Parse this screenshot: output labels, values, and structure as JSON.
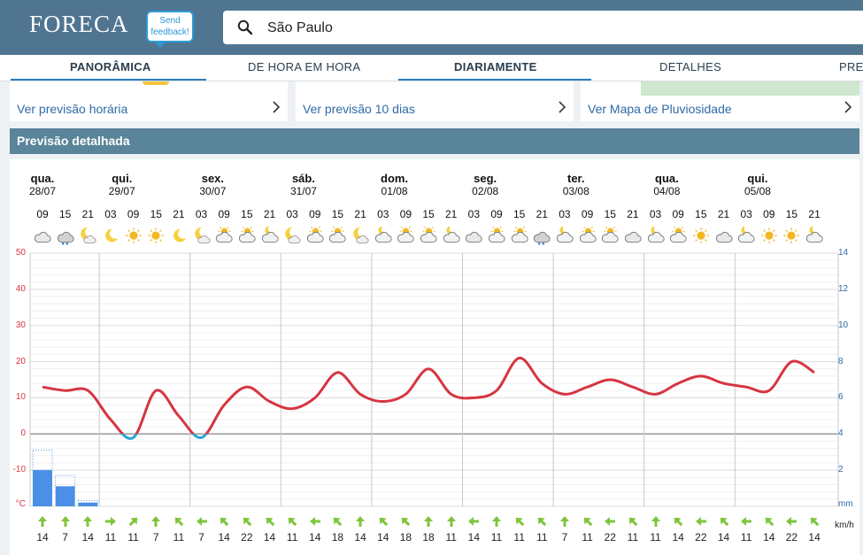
{
  "header": {
    "logo": "FORECA",
    "feedback_line1": "Send",
    "feedback_line2": "feedback!",
    "search_value": "São Paulo"
  },
  "tabs": [
    {
      "label": "PANORÂMICA",
      "active": true
    },
    {
      "label": "DE HORA EM HORA",
      "active": false
    },
    {
      "label": "DIARIAMENTE",
      "active": true
    },
    {
      "label": "DETALHES",
      "active": false
    },
    {
      "label": "PREC",
      "active": false
    }
  ],
  "cards": [
    {
      "link": "Ver previsão horária"
    },
    {
      "link": "Ver previsão 10 dias"
    },
    {
      "link": "Ver Mapa de Pluviosidade"
    }
  ],
  "section_title": "Previsão detalhada",
  "days": [
    {
      "name": "qua.",
      "date": "28/07"
    },
    {
      "name": "qui.",
      "date": "29/07"
    },
    {
      "name": "sex.",
      "date": "30/07"
    },
    {
      "name": "sáb.",
      "date": "31/07"
    },
    {
      "name": "dom.",
      "date": "01/08"
    },
    {
      "name": "seg.",
      "date": "02/08"
    },
    {
      "name": "ter.",
      "date": "03/08"
    },
    {
      "name": "qua.",
      "date": "04/08"
    },
    {
      "name": "qui.",
      "date": "05/08"
    }
  ],
  "hours": [
    "09",
    "15",
    "21",
    "03",
    "09",
    "15",
    "21",
    "03",
    "09",
    "15",
    "21",
    "03",
    "09",
    "15",
    "21",
    "03",
    "09",
    "15",
    "21",
    "03",
    "09",
    "15",
    "21",
    "03",
    "09",
    "15",
    "21",
    "03",
    "09",
    "15",
    "21",
    "03",
    "09",
    "15",
    "21"
  ],
  "icons": [
    "cloudy-icon",
    "rain-cloud-icon",
    "moon-cloud-icon",
    "moon-icon",
    "sun-icon",
    "sun-icon",
    "moon-icon",
    "moon-cloud-icon",
    "sun-cloud-icon",
    "sun-cloud-icon",
    "cloud-moon-icon",
    "moon-cloud-icon",
    "sun-cloud-icon",
    "sun-cloud-icon",
    "moon-cloud-icon",
    "cloud-moon-icon",
    "sun-cloud-icon",
    "sun-cloud-icon",
    "cloud-moon-icon",
    "cloudy-icon",
    "sun-cloud-icon",
    "sun-cloud-icon",
    "rain-cloud-icon",
    "cloud-moon-icon",
    "sun-cloud-icon",
    "sun-cloud-icon",
    "cloudy-icon",
    "cloud-moon-icon",
    "sun-cloud-icon",
    "sun-icon",
    "cloudy-icon",
    "cloud-moon-icon",
    "sun-icon",
    "sun-icon",
    "cloud-moon-icon"
  ],
  "axis": {
    "left_unit": "°C",
    "left_ticks": [
      "50",
      "40",
      "30",
      "20",
      "10",
      "0",
      "-10"
    ],
    "right_unit": "mm",
    "right_ticks": [
      "14",
      "12",
      "10",
      "8",
      "6",
      "4",
      "2"
    ],
    "wind_unit": "km/h"
  },
  "colors": {
    "temp_line": "#d63541",
    "temp_below_zero": "#2aa4d5",
    "precip": "#4b8fe6",
    "wind_arrow": "#7dc53d"
  },
  "chart_data": {
    "type": "line",
    "x": [
      "09",
      "15",
      "21",
      "03",
      "09",
      "15",
      "21",
      "03",
      "09",
      "15",
      "21",
      "03",
      "09",
      "15",
      "21",
      "03",
      "09",
      "15",
      "21",
      "03",
      "09",
      "15",
      "21",
      "03",
      "09",
      "15",
      "21",
      "03",
      "09",
      "15",
      "21",
      "03",
      "09",
      "15",
      "21"
    ],
    "series": [
      {
        "values": [
          13,
          12,
          12,
          4,
          -1,
          12,
          5,
          -1,
          8,
          13,
          9,
          7,
          10,
          17,
          11,
          9,
          11,
          18,
          11,
          10,
          12,
          21,
          14,
          11,
          13,
          15,
          13,
          11,
          14,
          16,
          14,
          13,
          12,
          20,
          17
        ]
      }
    ],
    "precip_mm": [
      2.0,
      1.1,
      0.2,
      0,
      0,
      0,
      0,
      0,
      0,
      0,
      0,
      0,
      0,
      0,
      0,
      0,
      0,
      0,
      0,
      0,
      0,
      0,
      0,
      0,
      0,
      0,
      0,
      0,
      0,
      0,
      0,
      0,
      0,
      0,
      0
    ],
    "wind_kmh": [
      14,
      7,
      14,
      11,
      11,
      7,
      11,
      7,
      14,
      22,
      14,
      11,
      14,
      18,
      14,
      14,
      18,
      18,
      11,
      14,
      11,
      11,
      11,
      7,
      11,
      22,
      11,
      11,
      14,
      22,
      14,
      11,
      14,
      22,
      14
    ],
    "ylim": [
      -20,
      50
    ],
    "y2lim": [
      0,
      14
    ],
    "grid": true
  }
}
